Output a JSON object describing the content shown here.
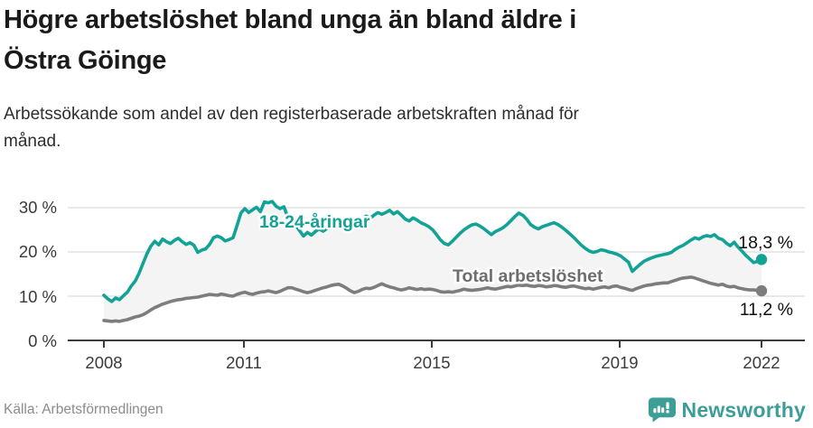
{
  "header": {
    "title_line1": "Högre arbetslöshet bland unga än bland äldre i",
    "title_line2": "Östra Göinge",
    "subtitle_line1": "Arbetssökande som andel av den registerbaserade arbetskraften månad för",
    "subtitle_line2": "månad."
  },
  "footer": {
    "source": "Källa: Arbetsförmedlingen",
    "brand": "Newsworthy"
  },
  "colors": {
    "youth_line": "#12a396",
    "total_line": "#7d7d7d",
    "total_label": "#6d6d72",
    "band_fill": "#f4f4f4",
    "gridline": "#dcdcdc",
    "axis": "#3c3c3c",
    "brand_teal": "#3d9d97"
  },
  "chart_data": {
    "type": "line",
    "title": "Högre arbetslöshet bland unga än bland äldre i Östra Göinge",
    "subtitle": "Arbetssökande som andel av den registerbaserade arbetskraften månad för månad.",
    "x_unit": "month",
    "x_start": "2008-01",
    "x_end": "2022-01",
    "x_ticks": [
      "2008",
      "2011",
      "2015",
      "2019",
      "2022"
    ],
    "y_ticks": [
      "30 %",
      "20 %",
      "10 %",
      "0 %"
    ],
    "ylim": [
      0,
      33
    ],
    "grid": true,
    "legend_position": "inline-labels",
    "series": [
      {
        "name": "18-24-åringar",
        "color": "#12a396",
        "end_value": 18.3,
        "end_label": "18,3 %",
        "values": [
          10.2,
          9.4,
          8.8,
          9.6,
          9.2,
          10.1,
          10.9,
          12.3,
          13.4,
          15.2,
          17.4,
          19.6,
          21.3,
          22.4,
          21.6,
          22.9,
          22.3,
          21.9,
          22.6,
          23.1,
          22.3,
          21.7,
          22.1,
          21.5,
          19.9,
          20.4,
          20.7,
          21.7,
          23.2,
          23.6,
          23.2,
          22.5,
          22.8,
          23.2,
          25.9,
          28.8,
          29.8,
          28.9,
          29.5,
          30.1,
          29.1,
          31.3,
          31.1,
          31.4,
          30.3,
          29.8,
          30.2,
          27.8,
          27.2,
          26.0,
          24.8,
          23.6,
          24.4,
          23.8,
          24.6,
          25.2,
          24.7,
          25.3,
          25.9,
          26.4,
          26.0,
          26.6,
          27.1,
          26.5,
          27.3,
          26.8,
          27.5,
          28.1,
          27.6,
          28.3,
          28.9,
          28.5,
          28.9,
          29.4,
          28.6,
          29.1,
          28.3,
          27.4,
          27.0,
          27.7,
          27.2,
          26.6,
          26.2,
          25.7,
          25.0,
          23.9,
          22.7,
          21.9,
          21.6,
          22.4,
          23.3,
          24.2,
          25.0,
          25.6,
          26.1,
          26.3,
          25.9,
          25.3,
          24.6,
          23.9,
          24.6,
          25.0,
          25.5,
          26.2,
          27.1,
          28.0,
          28.8,
          28.3,
          27.4,
          26.2,
          25.6,
          25.2,
          25.7,
          26.0,
          26.3,
          26.6,
          26.2,
          25.6,
          24.9,
          24.1,
          23.3,
          22.4,
          21.5,
          20.8,
          20.2,
          19.9,
          20.1,
          20.5,
          20.3,
          20.0,
          19.8,
          19.5,
          19.1,
          18.4,
          17.7,
          15.6,
          16.4,
          17.2,
          17.9,
          18.3,
          18.7,
          19.0,
          19.2,
          19.4,
          19.6,
          19.9,
          20.6,
          21.1,
          21.5,
          22.1,
          22.7,
          23.2,
          22.9,
          23.4,
          23.7,
          23.5,
          23.9,
          23.1,
          22.8,
          22.0,
          21.4,
          22.2,
          21.1,
          20.2,
          19.2,
          18.4,
          17.6,
          17.9,
          18.3
        ]
      },
      {
        "name": "Total arbetslöshet",
        "color": "#7d7d7d",
        "end_value": 11.2,
        "end_label": "11,2 %",
        "values": [
          4.5,
          4.4,
          4.3,
          4.4,
          4.3,
          4.5,
          4.7,
          5.0,
          5.3,
          5.5,
          5.8,
          6.3,
          6.9,
          7.4,
          7.8,
          8.2,
          8.5,
          8.8,
          9.0,
          9.2,
          9.3,
          9.5,
          9.6,
          9.7,
          9.8,
          10.0,
          10.2,
          10.4,
          10.3,
          10.2,
          10.5,
          10.3,
          10.1,
          10.0,
          10.4,
          10.7,
          10.9,
          10.6,
          10.4,
          10.7,
          10.9,
          11.0,
          11.2,
          11.0,
          10.8,
          11.1,
          11.5,
          11.9,
          11.9,
          11.6,
          11.3,
          11.0,
          10.8,
          11.0,
          11.3,
          11.6,
          11.9,
          12.1,
          12.4,
          12.6,
          12.7,
          12.3,
          11.8,
          11.2,
          10.8,
          11.1,
          11.5,
          11.8,
          11.7,
          12.0,
          12.4,
          12.8,
          12.4,
          12.1,
          11.9,
          11.6,
          11.4,
          11.6,
          11.9,
          11.7,
          11.5,
          11.7,
          11.5,
          11.6,
          11.5,
          11.3,
          11.0,
          10.9,
          11.0,
          10.9,
          11.1,
          11.3,
          11.6,
          11.4,
          11.3,
          11.4,
          11.5,
          11.7,
          11.9,
          11.7,
          11.6,
          11.8,
          12.0,
          12.2,
          12.1,
          12.3,
          12.5,
          12.4,
          12.5,
          12.3,
          12.2,
          12.4,
          12.3,
          12.1,
          12.2,
          12.4,
          12.3,
          12.1,
          12.0,
          12.2,
          12.3,
          12.1,
          11.9,
          11.7,
          11.8,
          11.6,
          11.8,
          12.0,
          12.1,
          11.9,
          12.2,
          12.3,
          12.0,
          11.8,
          11.5,
          11.3,
          11.7,
          12.0,
          12.3,
          12.5,
          12.6,
          12.8,
          12.9,
          13.0,
          13.0,
          13.3,
          13.6,
          13.9,
          14.1,
          14.2,
          14.3,
          14.1,
          13.8,
          13.5,
          13.2,
          12.9,
          12.7,
          12.5,
          12.7,
          12.3,
          12.1,
          12.2,
          11.9,
          11.7,
          11.5,
          11.4,
          11.4,
          11.3,
          11.2
        ]
      }
    ],
    "source": "Källa: Arbetsförmedlingen",
    "brand": "Newsworthy"
  }
}
